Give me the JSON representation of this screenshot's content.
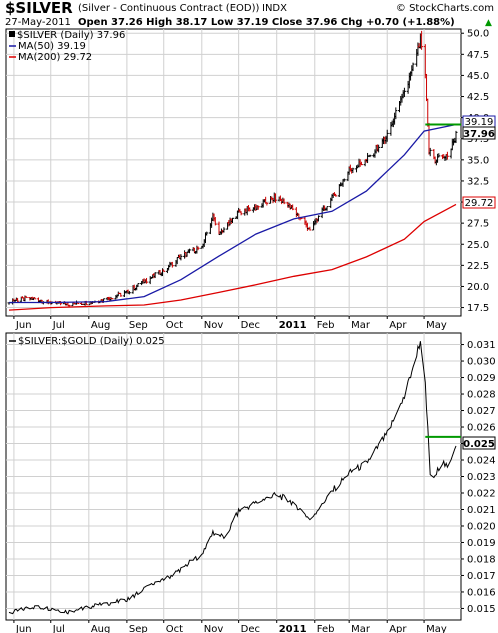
{
  "header": {
    "symbol": "$SILVER",
    "description": "(Silver - Continuous Contract (EOD))",
    "exchange": "INDX",
    "watermark": "© StockCharts.com",
    "date": "27-May-2011",
    "stats": "Open 37.26  High 38.17  Low 37.19  Close 37.96  Chg +0.70 (+1.88%)",
    "stats_arrow": "▲"
  },
  "panel1": {
    "legend_main": "$SILVER (Daily) 37.96",
    "legend_ma50": "MA(50) 39.19",
    "legend_ma200": "MA(200) 29.72",
    "price_tag": "37.96",
    "ma50_tag": "39.19",
    "ma200_tag": "29.72"
  },
  "panel2": {
    "legend": "$SILVER:$GOLD (Daily) 0.025",
    "ratio_tag": "0.025"
  },
  "colors": {
    "price_up": "#000000",
    "price_down": "#cc0000",
    "ma50": "#1a1aa6",
    "ma200": "#dd0000",
    "reference_line": "#009900",
    "grid": "#d0d0d0"
  },
  "chart_data": [
    {
      "type": "line",
      "title": "$SILVER (Daily) 37.96",
      "x_ticks": [
        "Jun",
        "Jul",
        "Aug",
        "Sep",
        "Oct",
        "Nov",
        "Dec",
        "2011",
        "Feb",
        "Mar",
        "Apr",
        "May"
      ],
      "y_ticks": [
        "17.5",
        "20.0",
        "22.5",
        "25.0",
        "27.5",
        "30.0",
        "32.5",
        "35.0",
        "37.5",
        "40.0",
        "42.5",
        "45.0",
        "47.5",
        "50.0"
      ],
      "ylim": [
        16.5,
        50.5
      ],
      "series": [
        {
          "name": "$SILVER (Daily) 37.96",
          "x": [
            "2010-05-28",
            "2010-06-15",
            "2010-07-01",
            "2010-07-15",
            "2010-08-01",
            "2010-08-15",
            "2010-09-01",
            "2010-09-15",
            "2010-10-01",
            "2010-10-15",
            "2010-11-01",
            "2010-11-10",
            "2010-11-15",
            "2010-12-01",
            "2010-12-15",
            "2011-01-01",
            "2011-01-15",
            "2011-01-28",
            "2011-02-15",
            "2011-03-01",
            "2011-03-15",
            "2011-04-01",
            "2011-04-15",
            "2011-04-25",
            "2011-04-28",
            "2011-05-01",
            "2011-05-05",
            "2011-05-10",
            "2011-05-15",
            "2011-05-20",
            "2011-05-27"
          ],
          "values": [
            18.3,
            18.6,
            18.1,
            17.9,
            18.1,
            18.5,
            19.3,
            20.6,
            21.9,
            23.6,
            24.7,
            28.3,
            26.0,
            28.8,
            29.4,
            30.6,
            29.0,
            26.8,
            30.4,
            33.8,
            34.9,
            37.9,
            42.8,
            47.3,
            49.2,
            47.5,
            36.0,
            35.0,
            35.5,
            35.2,
            37.96
          ]
        },
        {
          "name": "MA(50) 39.19",
          "x": [
            "2010-05-28",
            "2010-07-01",
            "2010-08-15",
            "2010-09-15",
            "2010-10-15",
            "2010-11-15",
            "2010-12-15",
            "2011-01-15",
            "2011-02-15",
            "2011-03-15",
            "2011-04-15",
            "2011-05-01",
            "2011-05-27"
          ],
          "values": [
            18.1,
            18.1,
            18.2,
            18.8,
            20.8,
            23.6,
            26.2,
            28.0,
            28.9,
            31.3,
            35.6,
            38.4,
            39.19
          ]
        },
        {
          "name": "MA(200) 29.72",
          "x": [
            "2010-05-28",
            "2010-07-01",
            "2010-08-15",
            "2010-09-15",
            "2010-10-15",
            "2010-11-15",
            "2010-12-15",
            "2011-01-15",
            "2011-02-15",
            "2011-03-15",
            "2011-04-15",
            "2011-05-01",
            "2011-05-27"
          ],
          "values": [
            17.2,
            17.5,
            17.7,
            17.8,
            18.4,
            19.3,
            20.2,
            21.2,
            22.0,
            23.5,
            25.6,
            27.7,
            29.72
          ]
        }
      ],
      "reference_line": 39.19
    },
    {
      "type": "line",
      "title": "$SILVER:$GOLD (Daily) 0.025",
      "x_ticks": [
        "Jun",
        "Jul",
        "Aug",
        "Sep",
        "Oct",
        "Nov",
        "Dec",
        "2011",
        "Feb",
        "Mar",
        "Apr",
        "May"
      ],
      "y_ticks": [
        "0.015",
        "0.016",
        "0.017",
        "0.018",
        "0.019",
        "0.020",
        "0.021",
        "0.022",
        "0.023",
        "0.024",
        "0.025",
        "0.026",
        "0.027",
        "0.028",
        "0.029",
        "0.030",
        "0.031"
      ],
      "ylim": [
        0.0143,
        0.0317
      ],
      "series": [
        {
          "name": "$SILVER:$GOLD (Daily) 0.025",
          "x": [
            "2010-05-28",
            "2010-06-15",
            "2010-07-01",
            "2010-07-15",
            "2010-08-01",
            "2010-08-15",
            "2010-09-01",
            "2010-09-15",
            "2010-10-01",
            "2010-10-15",
            "2010-11-01",
            "2010-11-10",
            "2010-11-20",
            "2010-12-01",
            "2010-12-15",
            "2011-01-01",
            "2011-01-15",
            "2011-01-28",
            "2011-02-15",
            "2011-03-01",
            "2011-03-15",
            "2011-04-01",
            "2011-04-15",
            "2011-04-25",
            "2011-04-28",
            "2011-05-01",
            "2011-05-06",
            "2011-05-10",
            "2011-05-15",
            "2011-05-20",
            "2011-05-27"
          ],
          "values": [
            0.0147,
            0.0151,
            0.015,
            0.0148,
            0.0151,
            0.0153,
            0.0155,
            0.0162,
            0.0167,
            0.0174,
            0.0183,
            0.0196,
            0.0193,
            0.0209,
            0.0214,
            0.0219,
            0.0214,
            0.0204,
            0.0221,
            0.0232,
            0.0238,
            0.0256,
            0.0278,
            0.0305,
            0.0312,
            0.0298,
            0.0232,
            0.0229,
            0.024,
            0.0235,
            0.025
          ]
        }
      ],
      "reference_line": 0.0254
    }
  ]
}
